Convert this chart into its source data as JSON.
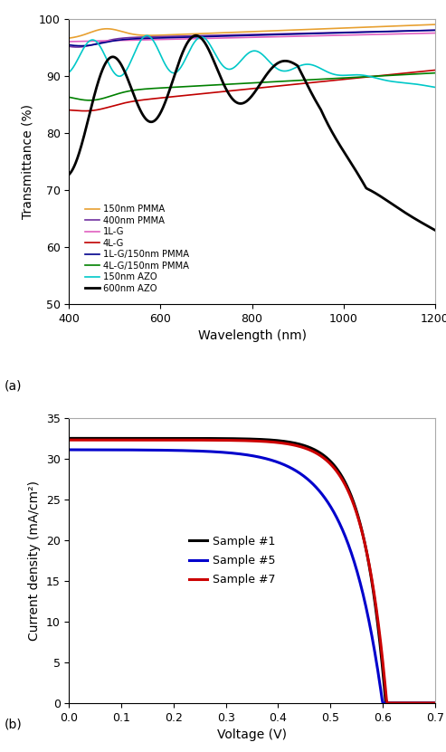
{
  "panel_a": {
    "xlabel": "Wavelength (nm)",
    "ylabel": "Transmittance (%)",
    "label": "(a)",
    "xlim": [
      400,
      1200
    ],
    "ylim": [
      50,
      100
    ],
    "yticks": [
      50,
      60,
      70,
      80,
      90,
      100
    ],
    "xticks": [
      400,
      600,
      800,
      1000,
      1200
    ],
    "legend_entries": [
      {
        "label": "150nm PMMA",
        "color": "#e8a030",
        "lw": 1.2
      },
      {
        "label": "400nm PMMA",
        "color": "#7030a0",
        "lw": 1.2
      },
      {
        "label": "1L-G",
        "color": "#e060c0",
        "lw": 1.2
      },
      {
        "label": "4L-G",
        "color": "#c00000",
        "lw": 1.2
      },
      {
        "label": "1L-G/150nm PMMA",
        "color": "#00008b",
        "lw": 1.2
      },
      {
        "label": "4L-G/150nm PMMA",
        "color": "#008000",
        "lw": 1.2
      },
      {
        "label": "150nm AZO",
        "color": "#00c8c8",
        "lw": 1.2
      },
      {
        "label": "600nm AZO",
        "color": "#000000",
        "lw": 2.0
      }
    ]
  },
  "panel_b": {
    "xlabel": "Voltage (V)",
    "ylabel": "Current density (mA/cm²)",
    "label": "(b)",
    "xlim": [
      0.0,
      0.7
    ],
    "ylim": [
      0,
      35
    ],
    "yticks": [
      0,
      5,
      10,
      15,
      20,
      25,
      30,
      35
    ],
    "xticks": [
      0.0,
      0.1,
      0.2,
      0.3,
      0.4,
      0.5,
      0.6,
      0.7
    ],
    "legend_entries": [
      {
        "label": "Sample #1",
        "color": "#000000",
        "lw": 2.2
      },
      {
        "label": "Sample #5",
        "color": "#0000cc",
        "lw": 2.2
      },
      {
        "label": "Sample #7",
        "color": "#cc0000",
        "lw": 2.2
      }
    ]
  }
}
